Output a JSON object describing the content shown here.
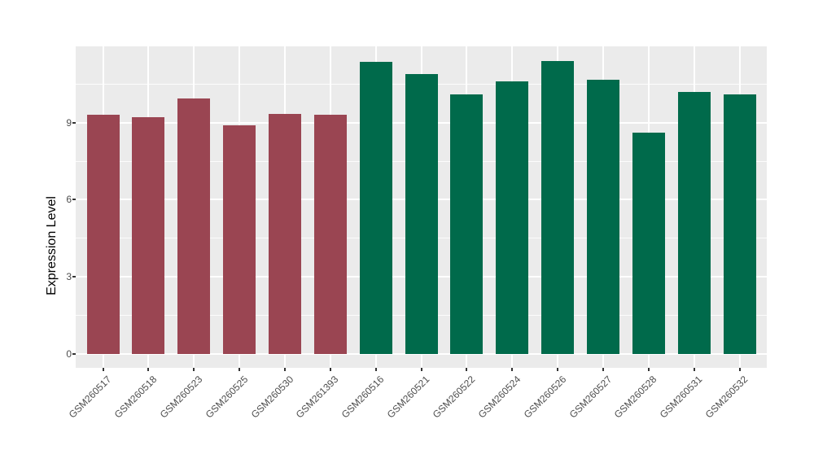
{
  "chart_data": {
    "type": "bar",
    "title": "",
    "xlabel": "",
    "ylabel": "Expression Level",
    "categories": [
      "GSM260517",
      "GSM260518",
      "GSM260523",
      "GSM260525",
      "GSM260530",
      "GSM261393",
      "GSM260516",
      "GSM260521",
      "GSM260522",
      "GSM260524",
      "GSM260526",
      "GSM260527",
      "GSM260528",
      "GSM260531",
      "GSM260532"
    ],
    "values": [
      9.3,
      9.2,
      9.95,
      8.9,
      9.35,
      9.3,
      11.35,
      10.9,
      10.1,
      10.6,
      11.4,
      10.65,
      8.6,
      10.2,
      10.1
    ],
    "bar_colors": [
      "#9A4552",
      "#9A4552",
      "#9A4552",
      "#9A4552",
      "#9A4552",
      "#9A4552",
      "#006A4B",
      "#006A4B",
      "#006A4B",
      "#006A4B",
      "#006A4B",
      "#006A4B",
      "#006A4B",
      "#006A4B",
      "#006A4B"
    ],
    "group_colors": {
      "red_group": "#9A4552",
      "green_group": "#006A4B"
    },
    "yticks": [
      0,
      3,
      6,
      9
    ],
    "minor_gridlines": [
      1.5,
      4.5,
      7.5,
      10.5
    ],
    "ylim": [
      -0.5,
      12.0
    ],
    "x_tick_rotation": 45,
    "grid": "on",
    "legend": "none",
    "panel_background": "#EBEBEB",
    "gridline_color": "#FFFFFF"
  }
}
